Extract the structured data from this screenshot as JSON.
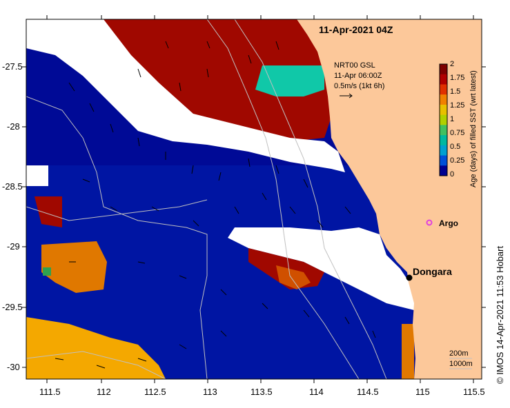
{
  "title": "11-Apr-2021 04Z",
  "current_legend": {
    "line1": "NRT00 GSL",
    "line2": "11-Apr 06:00Z",
    "line3": "0.5m/s (1kt 6h)"
  },
  "colorbar": {
    "label": "Age (days) of filled SST (wrt latest)",
    "ticks": [
      "2",
      "1.75",
      "1.5",
      "1.25",
      "1",
      "0.75",
      "0.5",
      "0.25",
      "0"
    ],
    "colors": [
      "#7d0000",
      "#b00000",
      "#e03000",
      "#f08000",
      "#e8c000",
      "#b0d000",
      "#40c060",
      "#00b8a0",
      "#00a0d0",
      "#0050d8",
      "#000090"
    ]
  },
  "axes": {
    "y_ticks": [
      "-27.5",
      "-28",
      "-28.5",
      "-29",
      "-29.5",
      "-30"
    ],
    "x_ticks": [
      "111.5",
      "112",
      "112.5",
      "113",
      "113.5",
      "114",
      "114.5",
      "115",
      "115.5"
    ]
  },
  "places": {
    "argo": "Argo",
    "dongara": "Dongara"
  },
  "isobaths": {
    "line1": "200m",
    "line2": "1000m"
  },
  "credit": "© IMOS 14-Apr-2021 11:53 Hobart",
  "colors": {
    "land": "#fcc89a",
    "ocean_deep": "#000a96",
    "cloud": "#ffffff",
    "dark_red": "#a00800",
    "orange": "#e07800",
    "light_orange": "#f4a800",
    "teal": "#10c8a8",
    "argo_marker": "#e040e0"
  }
}
